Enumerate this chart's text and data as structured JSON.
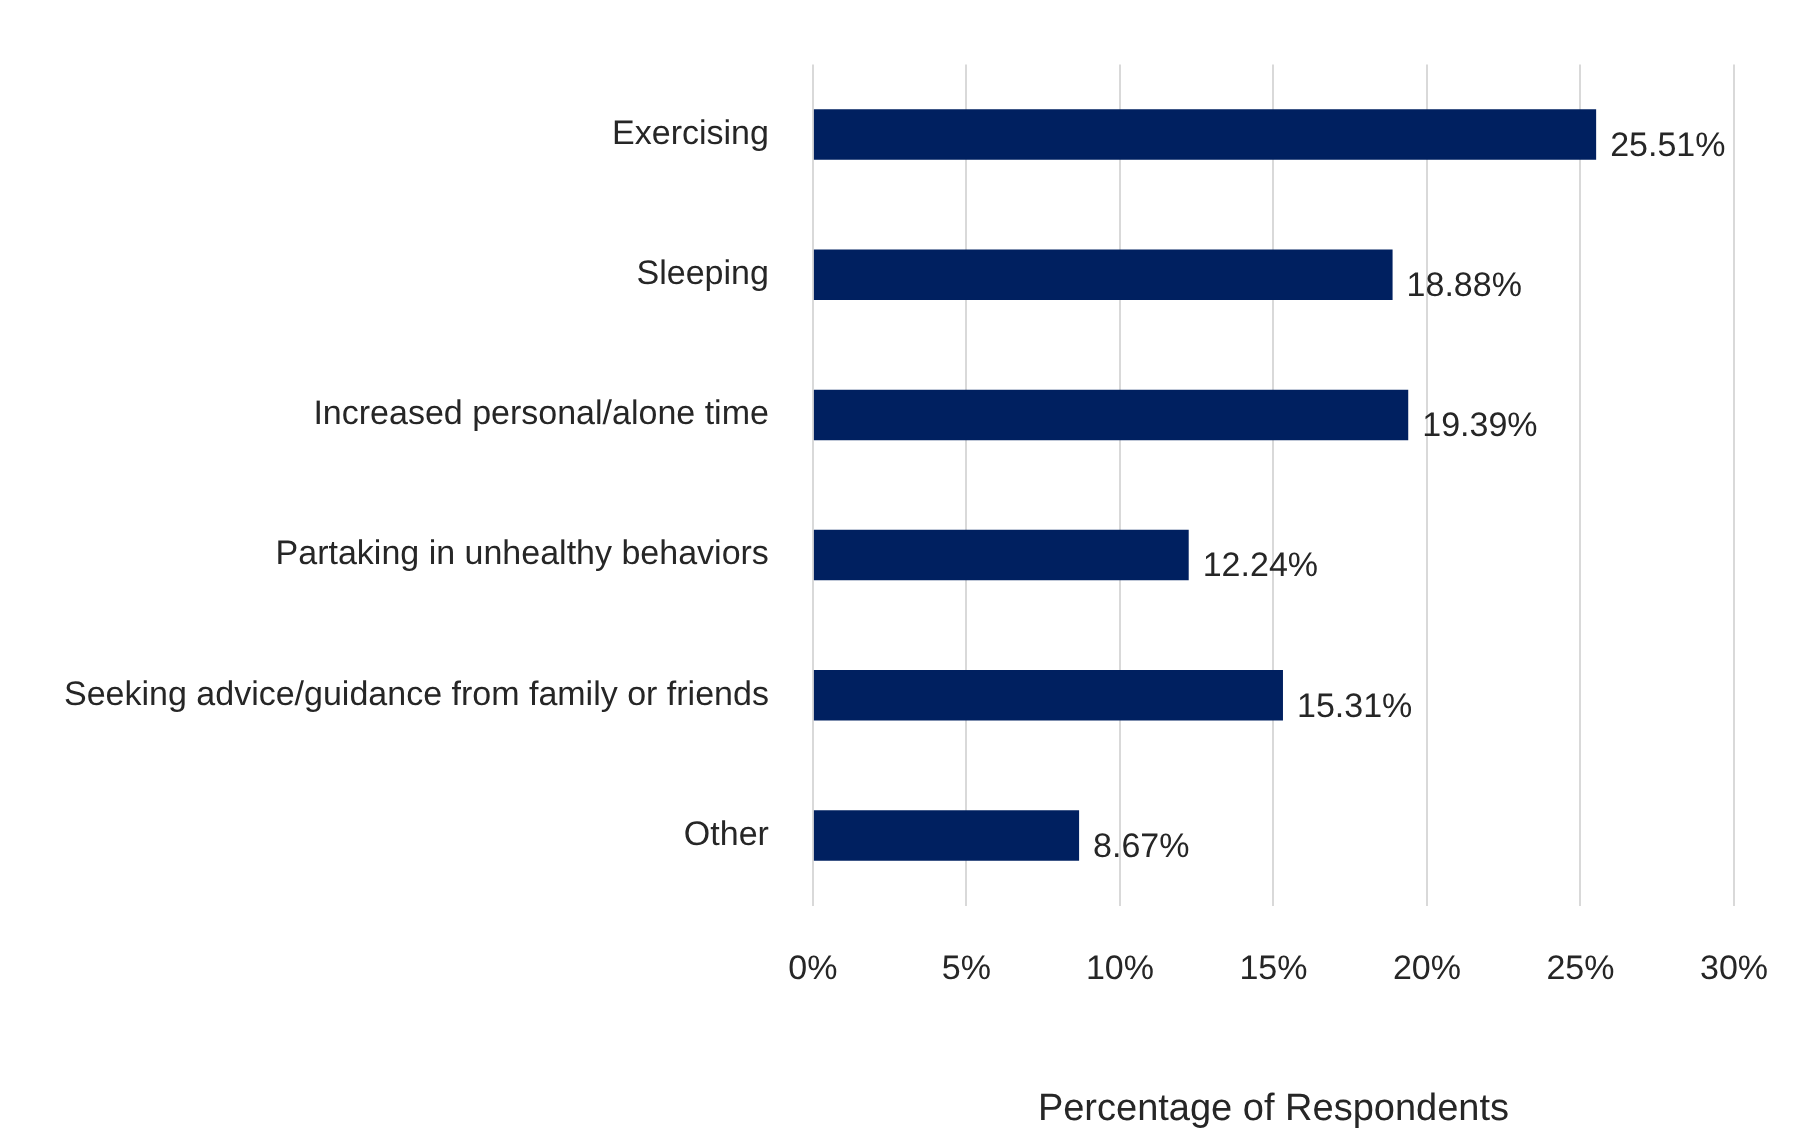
{
  "chart_data": {
    "type": "bar",
    "orientation": "horizontal",
    "xlabel": "Percentage of Respondents",
    "categories": [
      "Exercising",
      "Sleeping",
      "Increased personal/alone time",
      "Partaking in unhealthy behaviors",
      "Seeking advice/guidance from family or friends",
      "Other"
    ],
    "values": [
      25.51,
      18.88,
      19.39,
      12.24,
      15.31,
      8.67
    ],
    "value_labels": [
      "25.51%",
      "18.88%",
      "19.39%",
      "12.24%",
      "15.31%",
      "8.67%"
    ],
    "color": "#002060",
    "xlim": [
      0,
      30
    ],
    "xticks": [
      {
        "value": 0,
        "label": "0%"
      },
      {
        "value": 5,
        "label": "5%"
      },
      {
        "value": 10,
        "label": "10%"
      },
      {
        "value": 15,
        "label": "15%"
      },
      {
        "value": 20,
        "label": "20%"
      },
      {
        "value": 25,
        "label": "25%"
      },
      {
        "value": 30,
        "label": "30%"
      }
    ],
    "grid": "x",
    "legend": false
  }
}
